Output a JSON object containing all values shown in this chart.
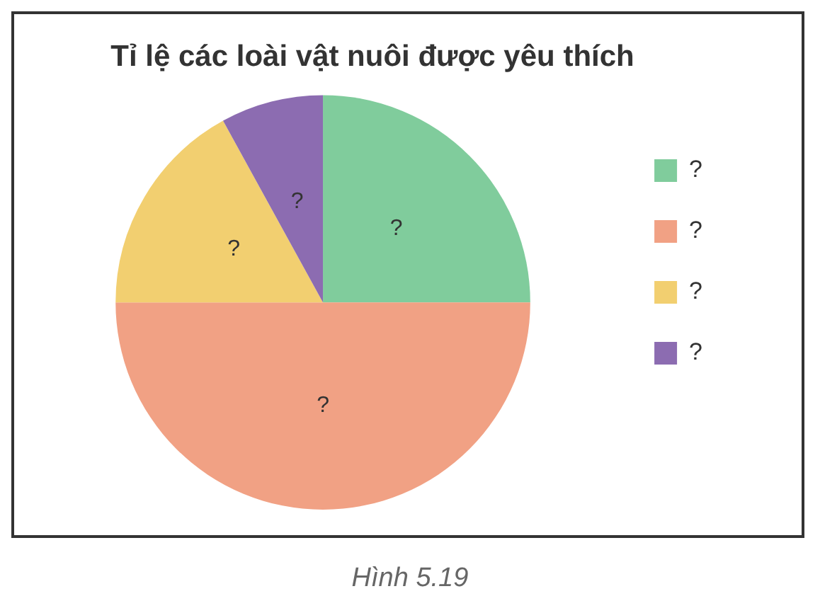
{
  "chart_data": {
    "type": "pie",
    "title": "Tỉ lệ các loài vật nuôi được yêu thích",
    "categories": [
      "?",
      "?",
      "?",
      "?"
    ],
    "values": [
      25,
      50,
      17,
      8
    ],
    "colors": [
      "#80cc9c",
      "#f1a184",
      "#f2cf70",
      "#8c6cb1"
    ],
    "value_labels": [
      "?",
      "?",
      "?",
      "?"
    ],
    "legend": "right",
    "annotations": [
      "Hình 5.19"
    ]
  }
}
